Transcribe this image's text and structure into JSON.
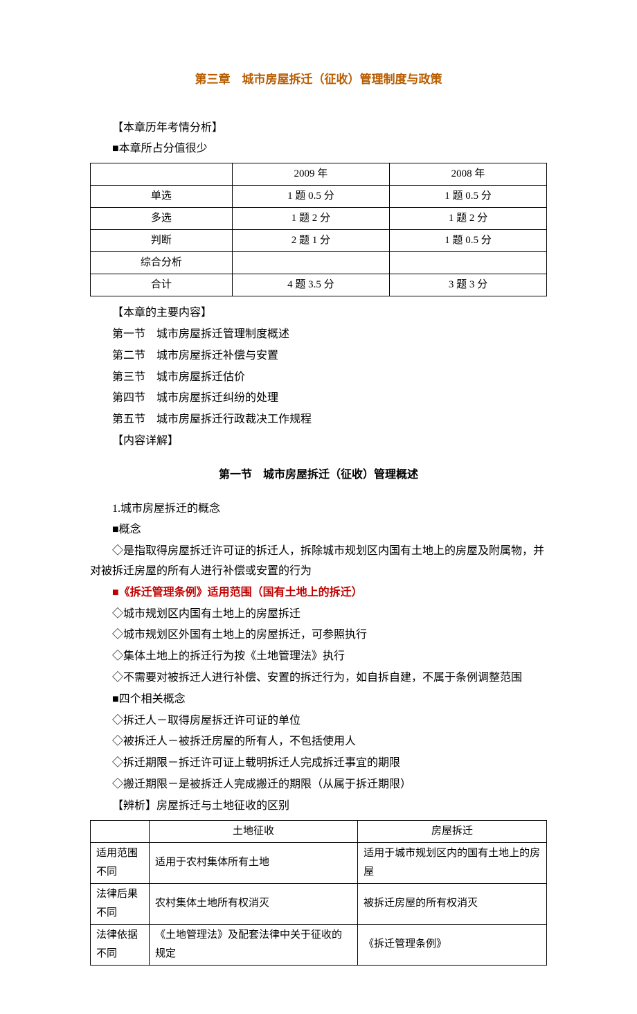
{
  "chapterTitle": "第三章　城市房屋拆迁（征收）管理制度与政策",
  "examAnalysis": {
    "heading": "【本章历年考情分析】",
    "note": "■本章所占分值很少",
    "columns": [
      "",
      "2009 年",
      "2008 年"
    ],
    "rows": [
      [
        "单选",
        "1 题 0.5 分",
        "1 题 0.5 分"
      ],
      [
        "多选",
        "1 题 2 分",
        "1 题 2 分"
      ],
      [
        "判断",
        "2 题 1 分",
        "1 题 0.5 分"
      ],
      [
        "综合分析",
        "",
        ""
      ],
      [
        "合计",
        "4 题 3.5 分",
        "3 题 3 分"
      ]
    ]
  },
  "mainContent": {
    "heading": "【本章的主要内容】",
    "items": [
      "第一节　城市房屋拆迁管理制度概述",
      "第二节　城市房屋拆迁补偿与安置",
      "第三节　城市房屋拆迁估价",
      "第四节　城市房屋拆迁纠纷的处理",
      "第五节　城市房屋拆迁行政裁决工作规程"
    ],
    "detailNote": "【内容详解】"
  },
  "section1": {
    "title": "第一节　城市房屋拆迁（征收）管理概述",
    "concept": {
      "num": "1.城市房屋拆迁的概念",
      "label": "■概念",
      "def": "◇是指取得房屋拆迁许可证的拆迁人，拆除城市规划区内国有土地上的房屋及附属物，并对被拆迁房屋的所有人进行补偿或安置的行为"
    },
    "scope": {
      "heading": "■《拆迁管理条例》适用范围（国有土地上的拆迁）",
      "items": [
        "◇城市规划区内国有土地上的房屋拆迁",
        "◇城市规划区外国有土地上的房屋拆迁，可参照执行",
        "◇集体土地上的拆迁行为按《土地管理法》执行",
        "◇不需要对被拆迁人进行补偿、安置的拆迁行为，如自拆自建，不属于条例调整范围"
      ]
    },
    "fourConcepts": {
      "heading": "■四个相关概念",
      "items": [
        "◇拆迁人－取得房屋拆迁许可证的单位",
        "◇被拆迁人－被拆迁房屋的所有人，不包括使用人",
        "◇拆迁期限－拆迁许可证上载明拆迁人完成拆迁事宜的期限",
        "◇搬迁期限－是被拆迁人完成搬迁的期限（从属于拆迁期限）"
      ]
    },
    "comparison": {
      "heading": "【辨析】房屋拆迁与土地征收的区别",
      "columns": [
        "",
        "土地征收",
        "房屋拆迁"
      ],
      "rows": [
        [
          "适用范围不同",
          "适用于农村集体所有土地",
          "适用于城市规划区内的国有土地上的房屋"
        ],
        [
          "法律后果不同",
          "农村集体土地所有权消灭",
          "被拆迁房屋的所有权消灭"
        ],
        [
          "法律依据不同",
          "《土地管理法》及配套法律中关于征收的规定",
          "《拆迁管理条例》"
        ]
      ]
    }
  }
}
